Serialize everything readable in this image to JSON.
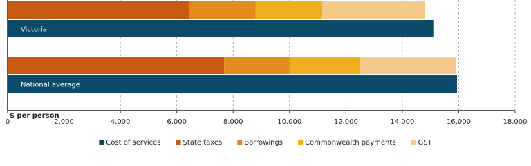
{
  "chart_data": {
    "type": "bar",
    "orientation": "horizontal",
    "categories": [
      "Victoria",
      "National average"
    ],
    "x_label": "$ per person",
    "series": [
      {
        "name": "Cost of services",
        "color": "#0b4a69",
        "stacked": false,
        "values": [
          15100,
          15940
        ]
      },
      {
        "name": "State taxes",
        "color": "#c75b12",
        "stacked": true,
        "values": [
          6450,
          7680
        ]
      },
      {
        "name": "Borrowings",
        "color": "#e38a1c",
        "stacked": true,
        "values": [
          2350,
          2320
        ]
      },
      {
        "name": "Commonwealth payments",
        "color": "#efaf1e",
        "stacked": true,
        "values": [
          2360,
          2500
        ]
      },
      {
        "name": "GST",
        "color": "#f4c98a",
        "stacked": true,
        "values": [
          3650,
          3410
        ]
      }
    ],
    "xlim": [
      0,
      18000
    ],
    "xticks": [
      0,
      {
        "value": 2000,
        "label": "2,000"
      },
      {
        "value": 4000,
        "label": "4,000"
      },
      {
        "value": 6000,
        "label": "6,000"
      },
      {
        "value": 8000,
        "label": "8,000"
      },
      {
        "value": 10000,
        "label": "10,000"
      },
      {
        "value": 12000,
        "label": "12,000"
      },
      {
        "value": 14000,
        "label": "14,000"
      },
      {
        "value": 16000,
        "label": "16,000"
      },
      {
        "value": 18000,
        "label": "18,000"
      }
    ],
    "grid": true
  }
}
